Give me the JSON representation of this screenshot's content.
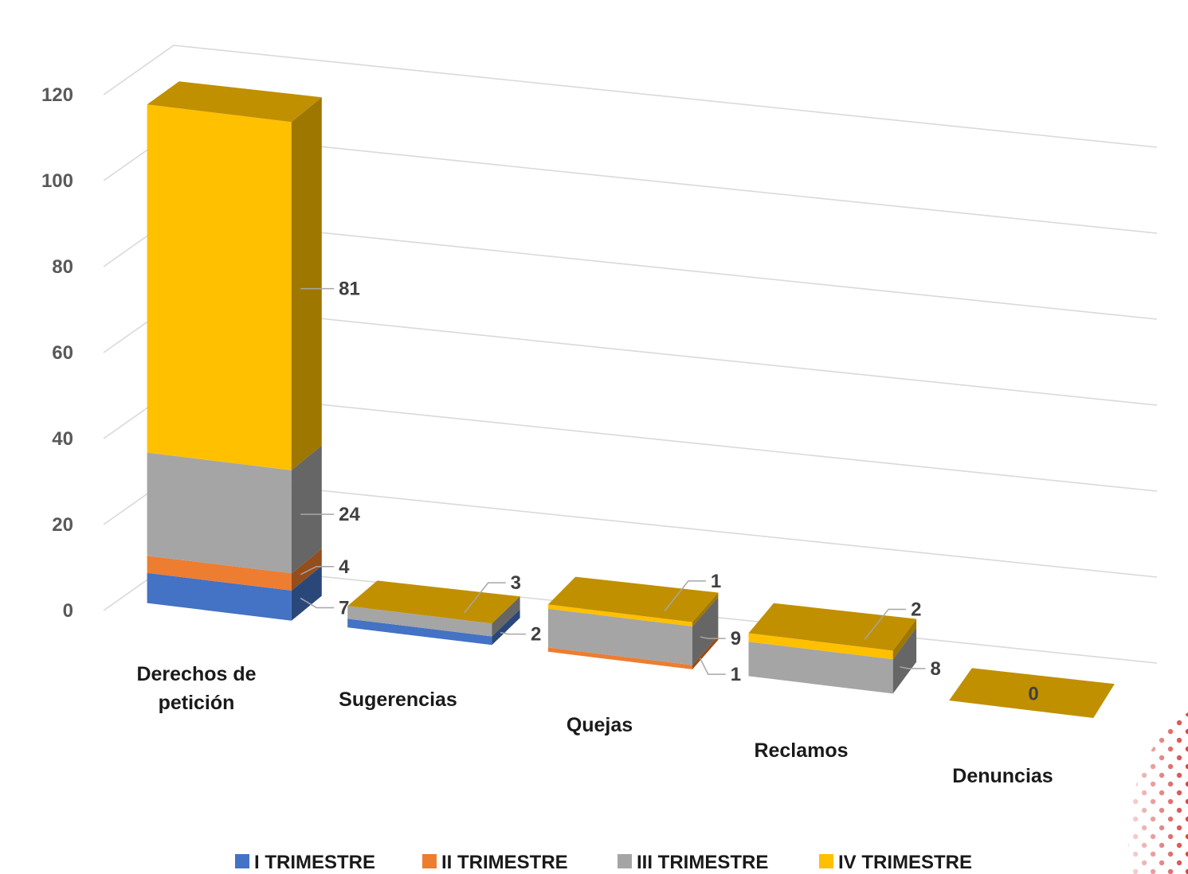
{
  "chart_data": {
    "type": "bar",
    "stacked": true,
    "three_d": true,
    "categories": [
      "Derechos de petición",
      "Sugerencias",
      "Quejas",
      "Reclamos",
      "Denuncias"
    ],
    "series": [
      {
        "name": "I TRIMESTRE",
        "color": "#4472C4",
        "values": [
          7,
          2,
          0,
          0,
          0
        ]
      },
      {
        "name": "II TRIMESTRE",
        "color": "#ED7D31",
        "values": [
          4,
          0,
          1,
          0,
          0
        ]
      },
      {
        "name": "III TRIMESTRE",
        "color": "#A5A5A5",
        "values": [
          24,
          3,
          9,
          8,
          0
        ]
      },
      {
        "name": "IV TRIMESTRE",
        "color": "#FFC000",
        "values": [
          81,
          0,
          1,
          2,
          0
        ]
      }
    ],
    "data_labels": [
      {
        "category": 0,
        "series": 0,
        "text": "7"
      },
      {
        "category": 0,
        "series": 1,
        "text": "4"
      },
      {
        "category": 0,
        "series": 2,
        "text": "24"
      },
      {
        "category": 0,
        "series": 3,
        "text": "81"
      },
      {
        "category": 1,
        "series": 0,
        "text": "2"
      },
      {
        "category": 1,
        "series": 2,
        "text": "3"
      },
      {
        "category": 2,
        "series": 1,
        "text": "1"
      },
      {
        "category": 2,
        "series": 2,
        "text": "9"
      },
      {
        "category": 2,
        "series": 3,
        "text": "1"
      },
      {
        "category": 3,
        "series": 2,
        "text": "8"
      },
      {
        "category": 3,
        "series": 3,
        "text": "2"
      },
      {
        "category": 4,
        "series": 3,
        "text": "0"
      }
    ],
    "y_ticks": [
      "0",
      "20",
      "40",
      "60",
      "80",
      "100",
      "120"
    ],
    "ylim": [
      0,
      120
    ],
    "grid": true,
    "legend_position": "bottom"
  }
}
